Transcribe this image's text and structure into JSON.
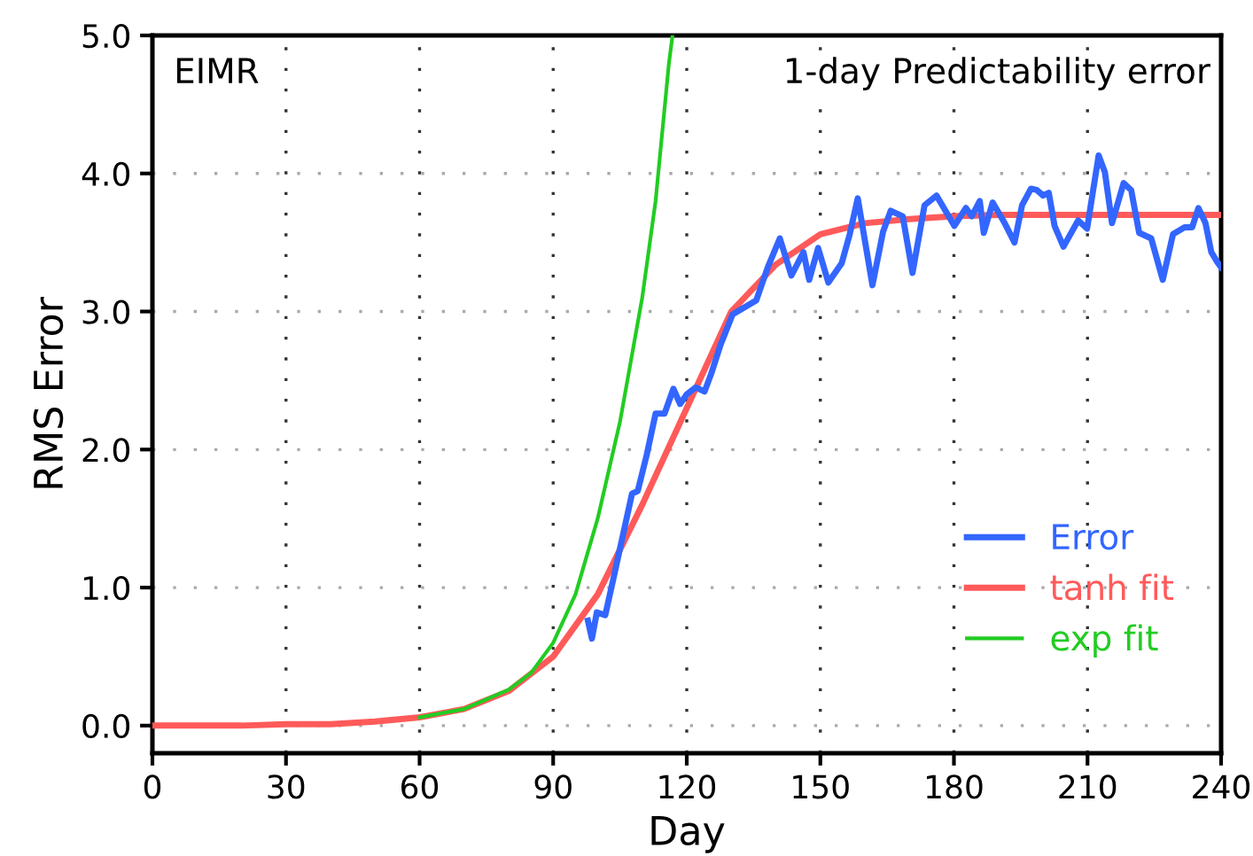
{
  "chart_data": {
    "type": "line",
    "xlabel": "Day",
    "ylabel": "RMS Error",
    "annotations": [
      "EIMR",
      "1-day Predictability error"
    ],
    "xlim": [
      0,
      240
    ],
    "xticks": [
      0,
      30,
      60,
      90,
      120,
      150,
      180,
      210,
      240
    ],
    "ylim": [
      -0.2,
      5.0
    ],
    "yticks": [
      {
        "value": 0,
        "label": "0.0"
      },
      {
        "value": 1,
        "label": "1.0"
      },
      {
        "value": 2,
        "label": "2.0"
      },
      {
        "value": 3,
        "label": "3.0"
      },
      {
        "value": 4,
        "label": "4.0"
      },
      {
        "value": 5,
        "label": "5.0"
      }
    ],
    "grid": true,
    "legend": "bottom right",
    "line_style": "solid",
    "marker": "none",
    "series": [
      {
        "name": "Error",
        "color": "#3366ff",
        "x": [
          97.8,
          98.7,
          99.8,
          101.7,
          103.7,
          107.7,
          109.0,
          111.0,
          113.0,
          115.0,
          117.0,
          118.5,
          120.0,
          122.0,
          124.0,
          125.5,
          127.6,
          130.3,
          135.6,
          138.2,
          140.9,
          143.5,
          146.2,
          147.5,
          149.5,
          151.8,
          154.8,
          156.6,
          158.4,
          161.7,
          164.1,
          165.8,
          168.5,
          170.7,
          173.4,
          176.1,
          180.1,
          182.7,
          184.0,
          185.8,
          186.7,
          188.7,
          191.4,
          193.6,
          195.3,
          197.3,
          198.6,
          200.0,
          201.3,
          202.6,
          204.6,
          207.9,
          209.9,
          212.5,
          213.9,
          215.5,
          218.1,
          219.8,
          221.6,
          224.3,
          226.9,
          229.2,
          231.8,
          233.5,
          234.9,
          236.5,
          237.8,
          239.1,
          240.0
        ],
        "values": [
          0.76,
          0.63,
          0.82,
          0.8,
          1.09,
          1.68,
          1.7,
          1.96,
          2.26,
          2.26,
          2.44,
          2.33,
          2.4,
          2.45,
          2.42,
          2.55,
          2.76,
          2.98,
          3.08,
          3.32,
          3.53,
          3.26,
          3.43,
          3.23,
          3.46,
          3.21,
          3.35,
          3.56,
          3.82,
          3.19,
          3.58,
          3.73,
          3.69,
          3.28,
          3.77,
          3.84,
          3.62,
          3.75,
          3.69,
          3.8,
          3.57,
          3.79,
          3.64,
          3.5,
          3.77,
          3.89,
          3.88,
          3.84,
          3.86,
          3.62,
          3.47,
          3.66,
          3.6,
          4.13,
          4.01,
          3.64,
          3.93,
          3.88,
          3.57,
          3.53,
          3.23,
          3.56,
          3.61,
          3.61,
          3.75,
          3.64,
          3.43,
          3.36,
          3.32
        ]
      },
      {
        "name": "tanh fit",
        "color": "#ff5a5a",
        "x": [
          0,
          10,
          20,
          30,
          40,
          50,
          60,
          70,
          80,
          90,
          100,
          110,
          120,
          130,
          140,
          150,
          160,
          170,
          180,
          190,
          200,
          210,
          220,
          230,
          240
        ],
        "values": [
          0,
          0,
          0,
          0.01,
          0.01,
          0.03,
          0.06,
          0.12,
          0.25,
          0.5,
          0.95,
          1.6,
          2.3,
          3.0,
          3.34,
          3.56,
          3.64,
          3.67,
          3.69,
          3.7,
          3.7,
          3.7,
          3.7,
          3.7,
          3.7
        ]
      },
      {
        "name": "exp fit",
        "color": "#22cc22",
        "x": [
          60,
          70,
          80,
          85,
          90,
          95,
          100,
          105,
          110,
          113,
          116,
          116.8
        ],
        "values": [
          0.06,
          0.12,
          0.26,
          0.38,
          0.6,
          0.95,
          1.5,
          2.2,
          3.1,
          3.8,
          4.8,
          5.0
        ]
      }
    ]
  }
}
